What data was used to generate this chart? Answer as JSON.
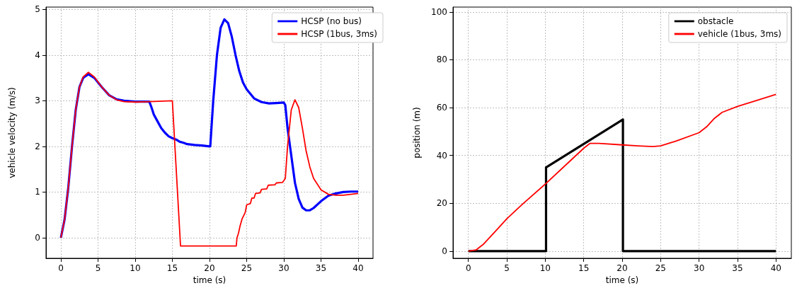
{
  "chart_data": [
    {
      "type": "line",
      "xlabel": "time (s)",
      "ylabel": "vehicle velocity (m/s)",
      "xlim": [
        -2,
        42
      ],
      "ylim": [
        -0.45,
        5.05
      ],
      "xticks": [
        0,
        5,
        10,
        15,
        20,
        25,
        30,
        35,
        40
      ],
      "yticks": [
        0,
        1,
        2,
        3,
        4,
        5
      ],
      "grid": true,
      "legend": "top right",
      "marker": "none",
      "series": [
        {
          "name": "HCSP (no bus)",
          "color": "#0000ff",
          "x": [
            0,
            0.5,
            1,
            1.5,
            2,
            2.5,
            3,
            3.7,
            4.5,
            5.5,
            6.5,
            7.5,
            8.5,
            10,
            11,
            11.9,
            12.2,
            12.5,
            13,
            13.5,
            14,
            14.5,
            15,
            15.5,
            16,
            16.5,
            17,
            18,
            19,
            20,
            20.1,
            20.5,
            21,
            21.5,
            22,
            22.5,
            23,
            23.5,
            24,
            24.5,
            25,
            26,
            27,
            28,
            29,
            30,
            30.2,
            30.5,
            31,
            31.5,
            32,
            32.5,
            33,
            33.5,
            34,
            35,
            36,
            37,
            38,
            39,
            40
          ],
          "values": [
            0,
            0.4,
            1.1,
            2.0,
            2.8,
            3.3,
            3.5,
            3.58,
            3.5,
            3.3,
            3.12,
            3.03,
            3.0,
            2.98,
            2.98,
            2.98,
            2.85,
            2.7,
            2.55,
            2.4,
            2.3,
            2.22,
            2.18,
            2.15,
            2.1,
            2.08,
            2.05,
            2.03,
            2.02,
            2.0,
            2.0,
            3.0,
            4.0,
            4.6,
            4.78,
            4.7,
            4.4,
            4.0,
            3.65,
            3.4,
            3.25,
            3.05,
            2.97,
            2.94,
            2.95,
            2.96,
            2.9,
            2.4,
            1.8,
            1.2,
            0.85,
            0.66,
            0.6,
            0.6,
            0.65,
            0.8,
            0.92,
            0.97,
            1.0,
            1.01,
            1.01
          ]
        },
        {
          "name": "HCSP (1bus, 3ms)",
          "color": "#ff0000",
          "x": [
            0,
            0.5,
            1,
            1.5,
            2,
            2.5,
            3,
            3.7,
            4.5,
            5.5,
            6.5,
            7.5,
            8.5,
            10,
            12,
            15,
            16.1,
            23.6,
            23.7,
            23.9,
            24.1,
            24.4,
            24.8,
            25,
            25.5,
            25.7,
            26,
            26.2,
            26.8,
            27,
            27.7,
            27.9,
            28.8,
            29,
            29.8,
            30,
            30.2,
            30.5,
            31,
            31.5,
            32,
            32.5,
            33,
            33.5,
            34,
            35,
            36,
            37,
            38,
            39,
            40
          ],
          "values": [
            0,
            0.4,
            1.1,
            2.0,
            2.8,
            3.3,
            3.52,
            3.62,
            3.52,
            3.3,
            3.12,
            3.02,
            2.98,
            2.97,
            2.98,
            3.0,
            -0.18,
            -0.18,
            0.0,
            0.1,
            0.25,
            0.42,
            0.55,
            0.72,
            0.75,
            0.87,
            0.87,
            0.97,
            0.98,
            1.06,
            1.07,
            1.15,
            1.16,
            1.2,
            1.21,
            1.25,
            1.3,
            2.0,
            2.8,
            3.02,
            2.85,
            2.4,
            1.9,
            1.55,
            1.3,
            1.05,
            0.95,
            0.93,
            0.93,
            0.95,
            0.97
          ]
        }
      ]
    },
    {
      "type": "line",
      "xlabel": "time (s)",
      "ylabel": "position (m)",
      "xlim": [
        -2,
        42
      ],
      "ylim": [
        -3,
        102
      ],
      "xticks": [
        0,
        5,
        10,
        15,
        20,
        25,
        30,
        35,
        40
      ],
      "yticks": [
        0,
        20,
        40,
        60,
        80,
        100
      ],
      "grid": true,
      "legend": "top right",
      "marker": "none",
      "series": [
        {
          "name": "obstacle",
          "color": "#000000",
          "x": [
            0,
            10.1,
            10.1,
            20.1,
            20.1,
            40
          ],
          "values": [
            0,
            0,
            35,
            55,
            0,
            0
          ]
        },
        {
          "name": "vehicle (1bus, 3ms)",
          "color": "#ff0000",
          "x": [
            0,
            1,
            2,
            3,
            4,
            5,
            7,
            10,
            13,
            15,
            15.8,
            17,
            20,
            22,
            24,
            25,
            27,
            30,
            31,
            32,
            33,
            35,
            37,
            40
          ],
          "values": [
            0,
            0.5,
            3,
            6.5,
            10,
            13.5,
            19.5,
            28,
            37,
            43,
            45,
            45,
            44.4,
            44,
            43.7,
            44,
            46,
            49.5,
            52,
            55.5,
            58,
            60.5,
            62.5,
            65.5
          ]
        }
      ]
    }
  ]
}
